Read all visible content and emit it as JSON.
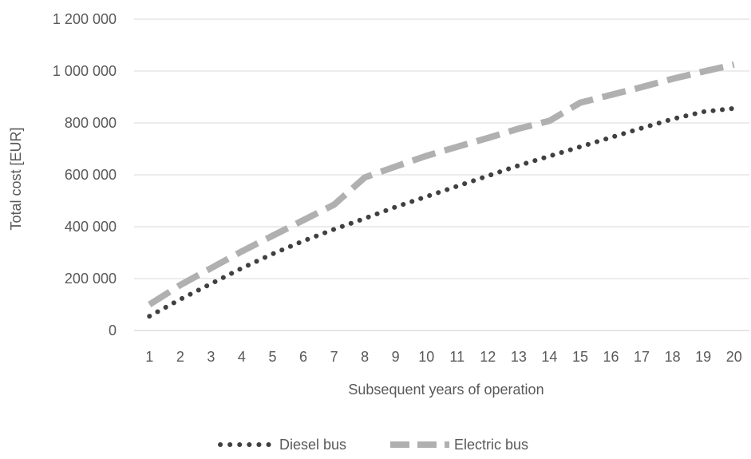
{
  "chart_data": {
    "type": "line",
    "title": "",
    "xlabel": "Subsequent years of operation",
    "ylabel": "Total cost [EUR]",
    "categories": [
      "1",
      "2",
      "3",
      "4",
      "5",
      "6",
      "7",
      "8",
      "9",
      "10",
      "11",
      "12",
      "13",
      "14",
      "15",
      "16",
      "17",
      "18",
      "19",
      "20"
    ],
    "ylim": [
      0,
      1200000
    ],
    "yticks": [
      0,
      200000,
      400000,
      600000,
      800000,
      1000000,
      1200000
    ],
    "ytick_labels": [
      "0",
      "200 000",
      "400 000",
      "600 000",
      "800 000",
      "1 000 000",
      "1 200 000"
    ],
    "grid": true,
    "legend_position": "bottom",
    "series": [
      {
        "name": "Diesel bus",
        "style": "dotted",
        "color": "#404040",
        "values": [
          55000,
          120000,
          180000,
          240000,
          295000,
          345000,
          390000,
          432000,
          476000,
          516000,
          556000,
          596000,
          636000,
          672000,
          708000,
          744000,
          780000,
          815000,
          843000,
          856000
        ]
      },
      {
        "name": "Electric bus",
        "style": "dashed",
        "color": "#b0b0b0",
        "values": [
          100000,
          175000,
          240000,
          305000,
          365000,
          425000,
          485000,
          590000,
          632000,
          673000,
          708000,
          742000,
          778000,
          808000,
          878000,
          908000,
          938000,
          970000,
          998000,
          1025000
        ]
      }
    ]
  }
}
